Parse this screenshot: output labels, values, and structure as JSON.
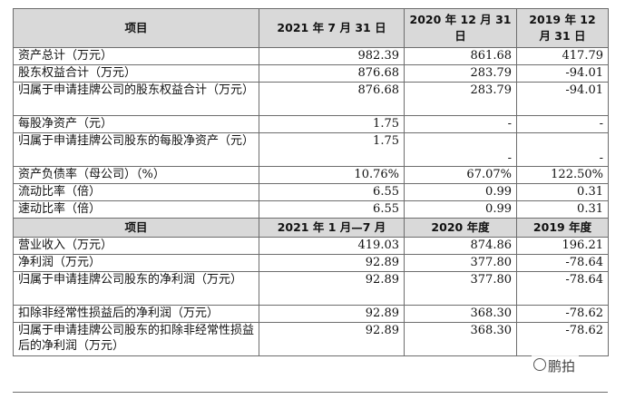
{
  "table": {
    "header1": [
      "项目",
      "2021 年 7 月 31 日",
      "2020 年 12 月 31 日",
      "2019 年 12 月 31 日"
    ],
    "rows1": [
      {
        "label": "资产总计（万元）",
        "v2021": "982.39",
        "v2020": "861.68",
        "v2019": "417.79"
      },
      {
        "label": "股东权益合计（万元）",
        "v2021": "876.68",
        "v2020": "283.79",
        "v2019": "-94.01"
      },
      {
        "label": "归属于申请挂牌公司的股东权益合计（万元）",
        "v2021": "876.68",
        "v2020": "283.79",
        "v2019": "-94.01"
      },
      {
        "label": "每股净资产（元）",
        "v2021": "1.75",
        "v2020": "-",
        "v2019": "-"
      },
      {
        "label": "归属于申请挂牌公司股东的每股净资产（元）",
        "v2021": "1.75",
        "v2020": "-",
        "v2019": "-"
      },
      {
        "label": "资产负债率（母公司）（%）",
        "v2021": "10.76%",
        "v2020": "67.07%",
        "v2019": "122.50%"
      },
      {
        "label": "流动比率（倍）",
        "v2021": "6.55",
        "v2020": "0.99",
        "v2019": "0.31"
      },
      {
        "label": "速动比率（倍）",
        "v2021": "6.55",
        "v2020": "0.99",
        "v2019": "0.31"
      }
    ],
    "header2": [
      "项目",
      "2021 年 1 月—7 月",
      "2020 年度",
      "2019 年度"
    ],
    "rows2": [
      {
        "label": "营业收入（万元）",
        "v2021": "419.03",
        "v2020": "874.86",
        "v2019": "196.21"
      },
      {
        "label": "净利润（万元）",
        "v2021": "92.89",
        "v2020": "377.80",
        "v2019": "-78.64"
      },
      {
        "label": "归属于申请挂牌公司股东的净利润（万元）",
        "v2021": "92.89",
        "v2020": "377.80",
        "v2019": "-78.64"
      },
      {
        "label": "扣除非经常性损益后的净利润（万元）",
        "v2021": "92.89",
        "v2020": "368.30",
        "v2019": "-78.62"
      },
      {
        "label": "归属于申请挂牌公司股东的扣除非经常性损益后的净利润（万元）",
        "v2021": "92.89",
        "v2020": "368.30",
        "v2019": "-78.62"
      }
    ]
  },
  "watermark": {
    "text": "鹏拍"
  }
}
